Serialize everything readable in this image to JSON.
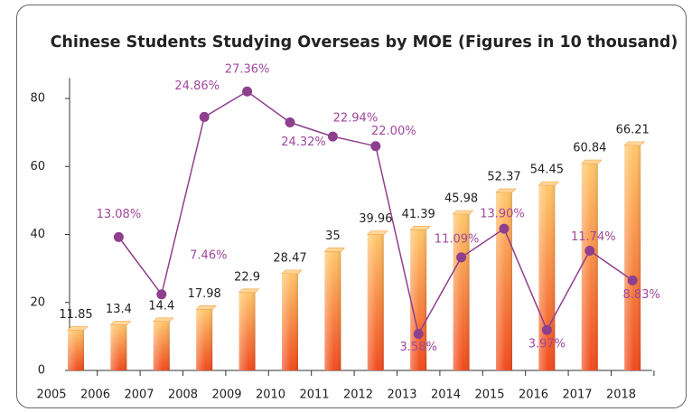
{
  "chart_data": {
    "type": "bar-line",
    "title": "Chinese Students Studying Overseas by MOE (Figures in 10 thousand)",
    "categories": [
      "2005",
      "2006",
      "2007",
      "2008",
      "2009",
      "2010",
      "2011",
      "2012",
      "2013",
      "2014",
      "2015",
      "2016",
      "2017",
      "2018"
    ],
    "series": [
      {
        "color": "#f47a20",
        "values": [
          11.85,
          13.4,
          14.4,
          17.98,
          22.9,
          28.47,
          35,
          39.96,
          41.39,
          45.98,
          52.37,
          54.45,
          60.84,
          66.21
        ]
      },
      {
        "color": "#8e3f8e",
        "axis": "y2",
        "values": [
          null,
          13.08,
          7.46,
          24.86,
          27.36,
          24.32,
          22.94,
          22.0,
          3.58,
          11.09,
          13.9,
          3.97,
          11.74,
          8.83
        ],
        "value_labels": [
          null,
          "13.08%",
          "7.46%",
          "24.86%",
          "27.36%",
          "24.32%",
          "22.94%",
          "22.00%",
          "3.58%",
          "11.09%",
          "13.90%",
          "3.97%",
          "11.74%",
          "8.83%"
        ]
      }
    ],
    "ylim": [
      0,
      86
    ],
    "yticks": [
      0,
      20,
      40,
      60,
      80
    ],
    "y2lim": [
      0,
      28.67
    ]
  }
}
